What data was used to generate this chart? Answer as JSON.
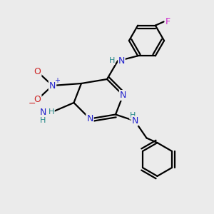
{
  "bg_color": "#ebebeb",
  "atom_colors": {
    "C": "#000000",
    "N": "#2222cc",
    "O": "#cc2222",
    "F": "#cc22cc",
    "H": "#228888"
  },
  "bond_color": "#000000",
  "bond_width": 1.6,
  "title": ""
}
